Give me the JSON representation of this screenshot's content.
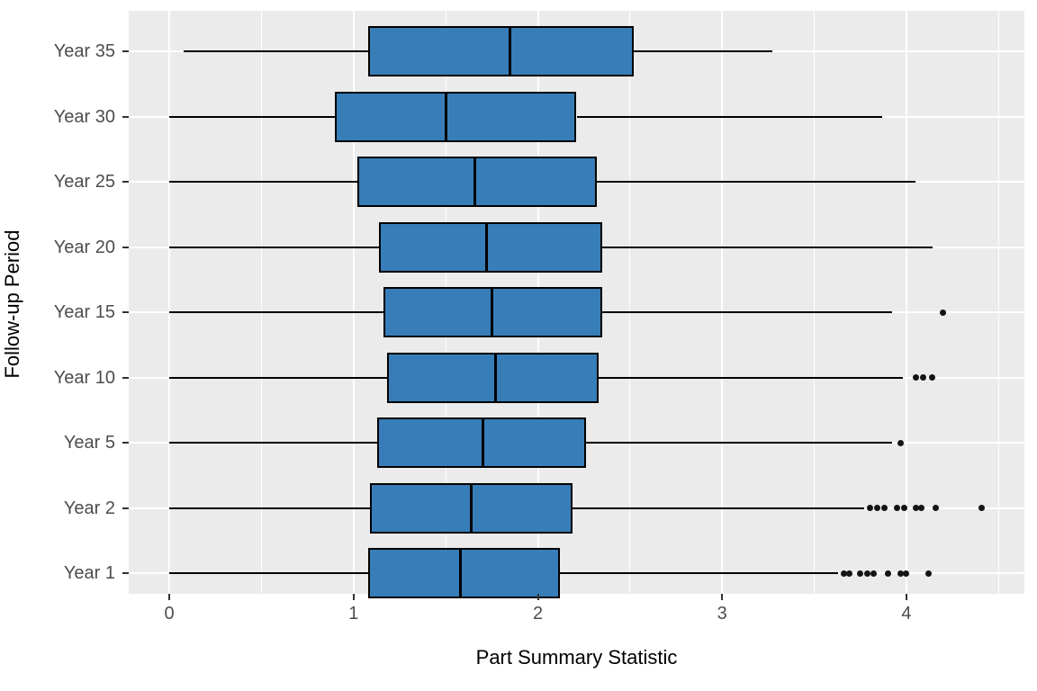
{
  "chart_data": {
    "type": "boxplot",
    "orientation": "horizontal",
    "title": "",
    "xlabel": "Part Summary Statistic",
    "ylabel": "Follow-up Period",
    "xlim": [
      -0.22,
      4.64
    ],
    "x_ticks": [
      0,
      1,
      2,
      3,
      4
    ],
    "x_minor_gridlines": [
      0.5,
      1.5,
      2.5,
      3.5,
      4.5
    ],
    "grid": "on",
    "legend": "none",
    "categories_top_to_bottom": [
      "Year 35",
      "Year 30",
      "Year 25",
      "Year 20",
      "Year 15",
      "Year 10",
      "Year 5",
      "Year 2",
      "Year 1"
    ],
    "boxes": [
      {
        "category": "Year 35",
        "whisker_min": 0.08,
        "q1": 1.08,
        "median": 1.85,
        "q3": 2.52,
        "whisker_max": 3.27,
        "outliers": []
      },
      {
        "category": "Year 30",
        "whisker_min": 0.0,
        "q1": 0.9,
        "median": 1.5,
        "q3": 2.21,
        "whisker_max": 3.87,
        "outliers": []
      },
      {
        "category": "Year 25",
        "whisker_min": 0.0,
        "q1": 1.02,
        "median": 1.66,
        "q3": 2.32,
        "whisker_max": 4.05,
        "outliers": []
      },
      {
        "category": "Year 20",
        "whisker_min": 0.0,
        "q1": 1.14,
        "median": 1.72,
        "q3": 2.35,
        "whisker_max": 4.14,
        "outliers": []
      },
      {
        "category": "Year 15",
        "whisker_min": 0.0,
        "q1": 1.16,
        "median": 1.75,
        "q3": 2.35,
        "whisker_max": 3.92,
        "outliers": [
          4.2
        ]
      },
      {
        "category": "Year 10",
        "whisker_min": 0.0,
        "q1": 1.18,
        "median": 1.77,
        "q3": 2.33,
        "whisker_max": 3.98,
        "outliers": [
          4.05,
          4.09,
          4.14
        ]
      },
      {
        "category": "Year 5",
        "whisker_min": 0.0,
        "q1": 1.13,
        "median": 1.7,
        "q3": 2.26,
        "whisker_max": 3.92,
        "outliers": [
          3.97
        ]
      },
      {
        "category": "Year 2",
        "whisker_min": 0.0,
        "q1": 1.09,
        "median": 1.64,
        "q3": 2.19,
        "whisker_max": 3.77,
        "outliers": [
          3.8,
          3.84,
          3.88,
          3.95,
          3.99,
          4.05,
          4.08,
          4.16,
          4.41
        ]
      },
      {
        "category": "Year 1",
        "whisker_min": 0.0,
        "q1": 1.08,
        "median": 1.58,
        "q3": 2.12,
        "whisker_max": 3.63,
        "outliers": [
          3.66,
          3.69,
          3.75,
          3.79,
          3.82,
          3.9,
          3.97,
          4.0,
          4.12
        ]
      }
    ],
    "colors": {
      "box_fill": "#377EB8",
      "box_border": "#000000",
      "median_line": "#000000",
      "whisker": "#000000",
      "outlier": "#141414",
      "panel_background": "#EBEBEB",
      "gridline": "#FFFFFF",
      "tick_label": "#4D4D4D",
      "axis_title": "#000000"
    }
  }
}
